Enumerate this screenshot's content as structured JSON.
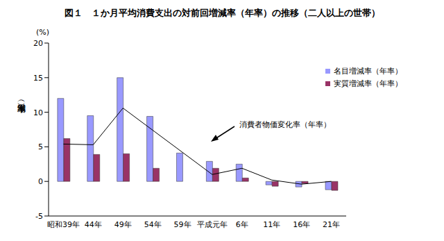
{
  "chart_data": {
    "type": "bar",
    "title": "図１　１か月平均消費支出の対前回増減率（年率）の推移（二人以上の世帯）",
    "y_label": "増減率（年率）",
    "y_unit": "(%)",
    "categories": [
      "昭和39年",
      "44年",
      "49年",
      "54年",
      "59年",
      "平成元年",
      "6年",
      "11年",
      "16年",
      "21年"
    ],
    "series": [
      {
        "name": "名目増減率（年率）",
        "type": "bar",
        "color": "#9999ff",
        "values": [
          12.0,
          9.5,
          15.0,
          9.4,
          4.1,
          2.9,
          2.5,
          -0.5,
          -0.8,
          -1.2
        ]
      },
      {
        "name": "実質増減率（年率）",
        "type": "bar",
        "color": "#993366",
        "values": [
          6.2,
          3.9,
          4.0,
          1.9,
          null,
          1.9,
          0.5,
          -0.7,
          -0.3,
          -1.3
        ]
      },
      {
        "name": "消費者物価変化率（年率）",
        "type": "line",
        "color": "#000000",
        "marker": "none",
        "values": [
          5.4,
          5.3,
          10.6,
          7.4,
          4.2,
          1.0,
          1.9,
          0.2,
          -0.4,
          0.0
        ]
      }
    ],
    "ylim": [
      -5,
      20
    ],
    "yticks": [
      -5,
      0,
      5,
      10,
      15,
      20
    ],
    "grid": false,
    "legend": "top right"
  }
}
